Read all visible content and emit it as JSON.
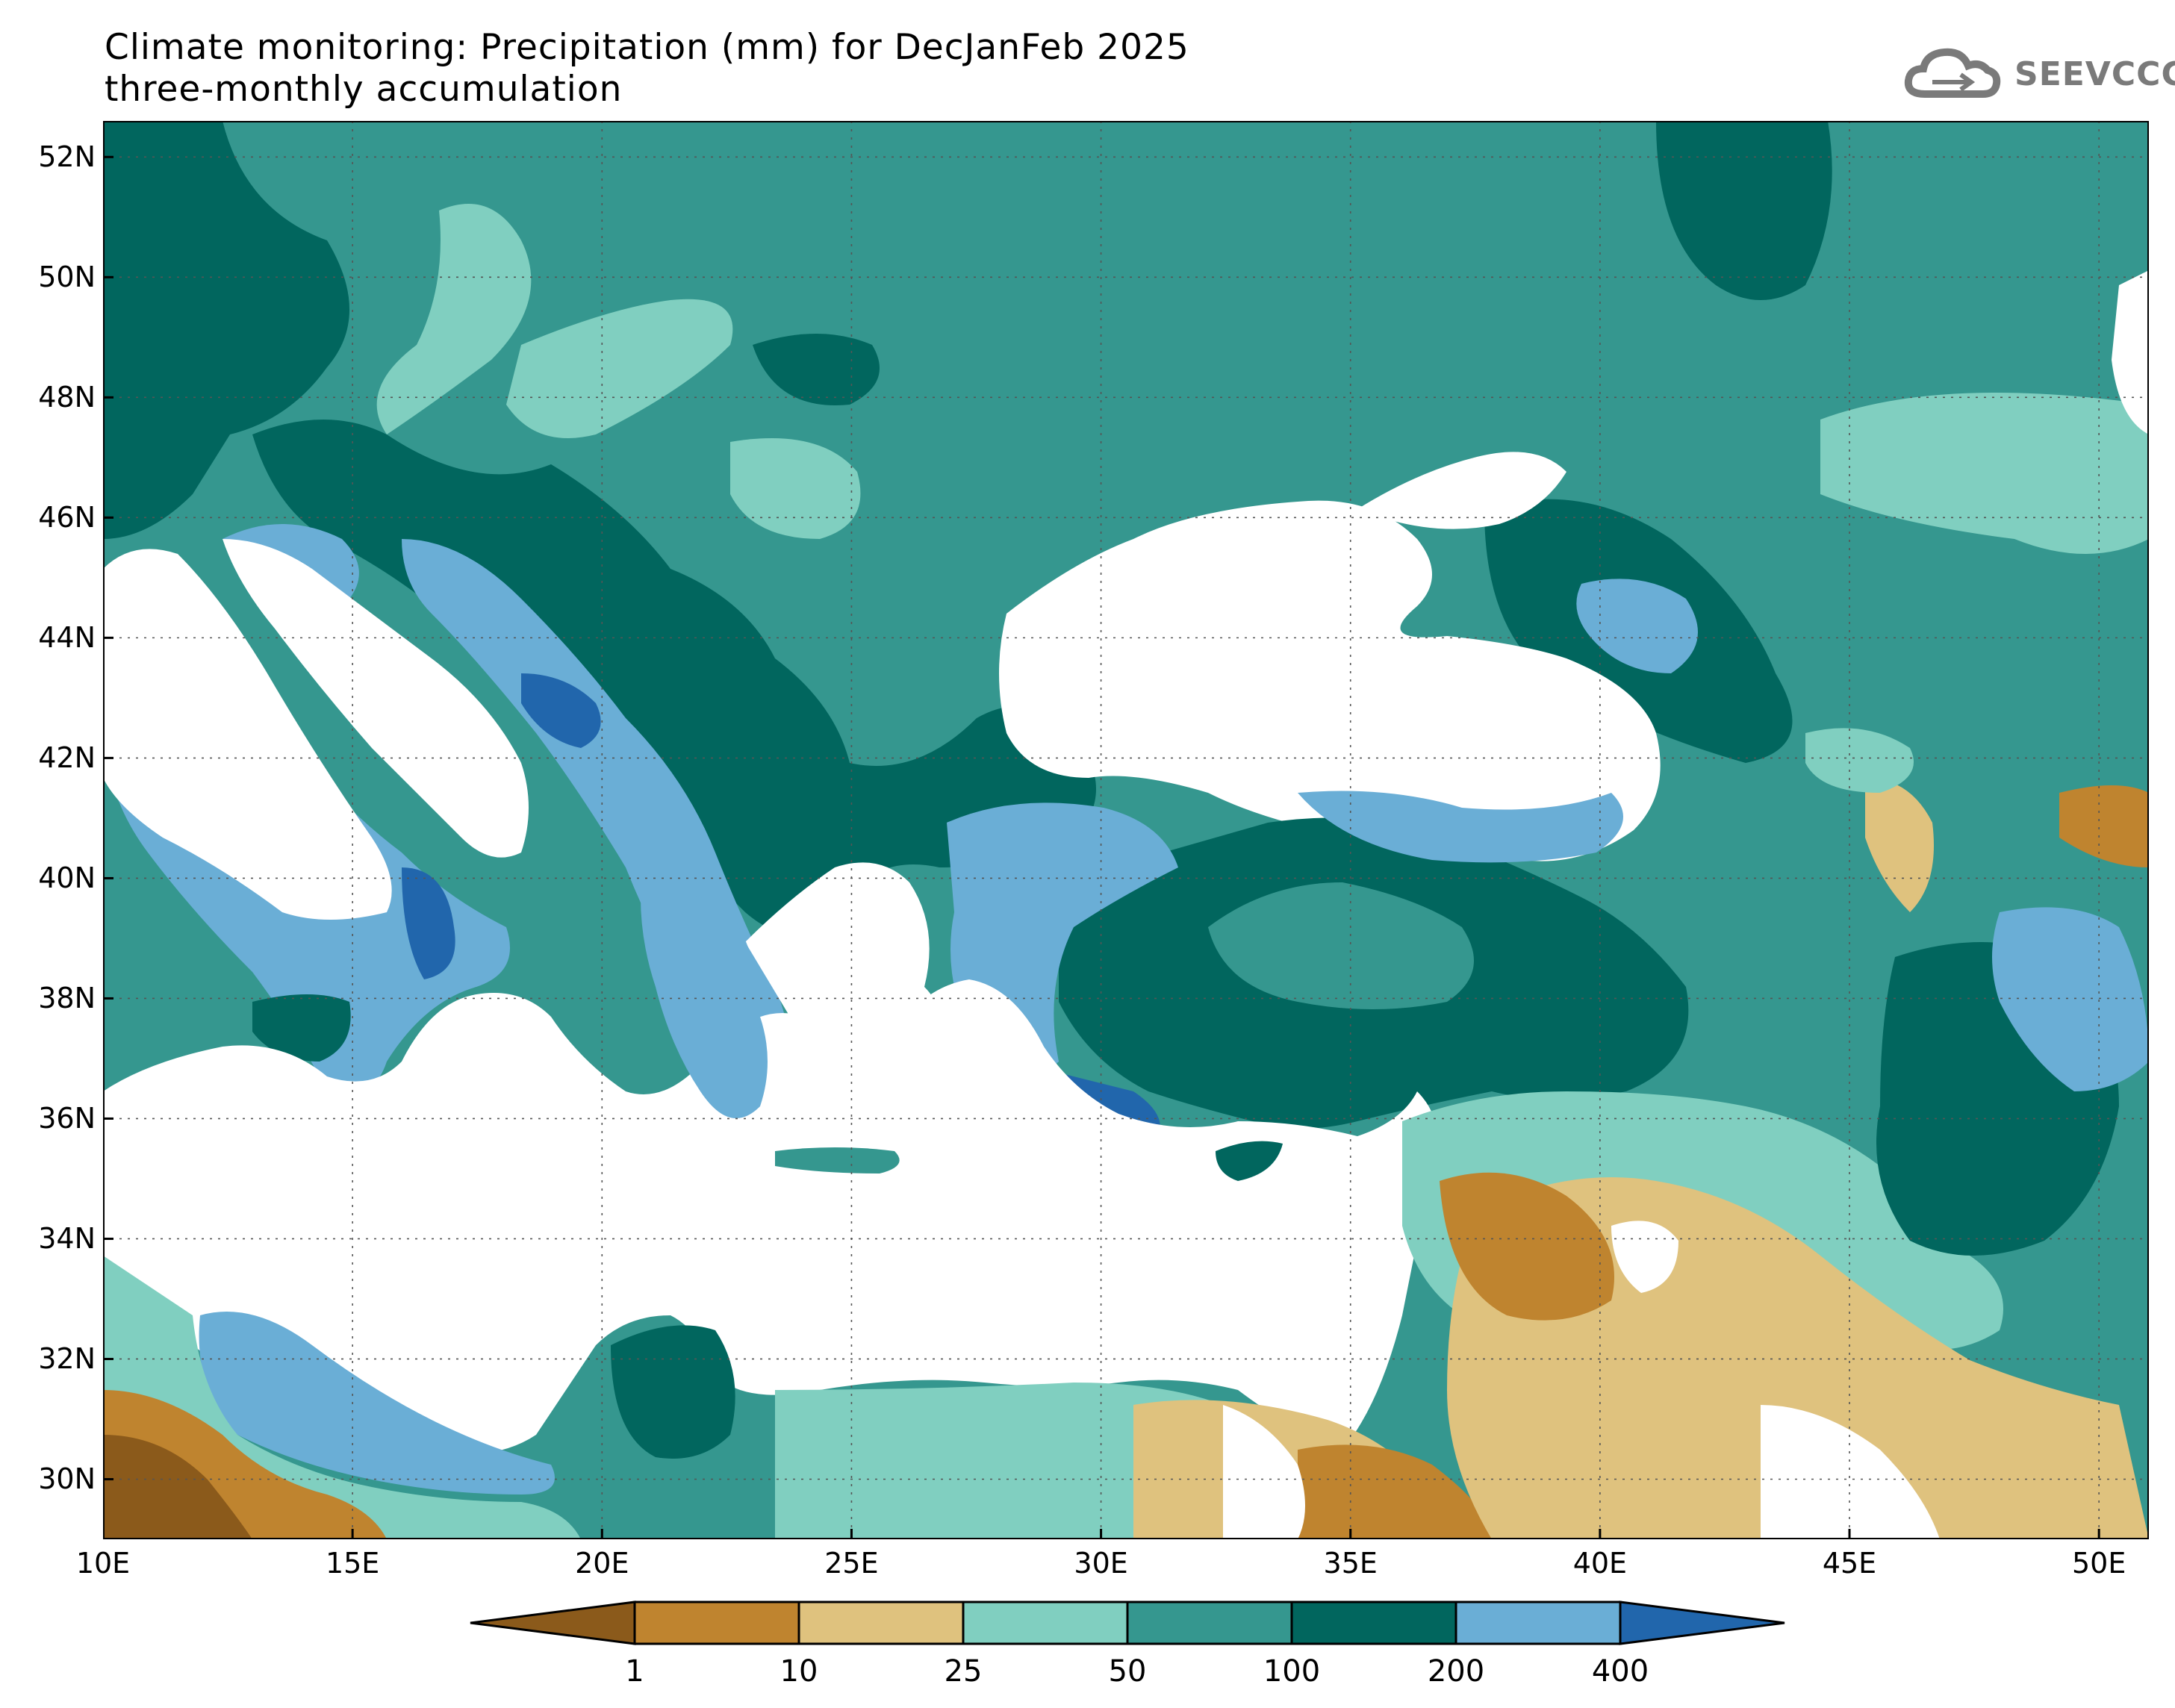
{
  "header": {
    "title_line1": "Climate monitoring: Precipitation (mm) for DecJanFeb 2025",
    "title_line2": "three-monthly accumulation",
    "logo_text": "SEEVCCC"
  },
  "map": {
    "projection": "lat-lon",
    "lon_range": [
      10,
      51
    ],
    "lat_range": [
      29,
      52.6
    ],
    "x_ticks": [
      "10E",
      "15E",
      "20E",
      "25E",
      "30E",
      "35E",
      "40E",
      "45E",
      "50E"
    ],
    "y_ticks": [
      "52N",
      "50N",
      "48N",
      "46N",
      "44N",
      "42N",
      "40N",
      "38N",
      "36N",
      "34N",
      "32N",
      "30N"
    ],
    "grid": "dotted",
    "land_color_sea": "#ffffff"
  },
  "colorbar": {
    "labels": [
      "1",
      "10",
      "25",
      "50",
      "100",
      "200",
      "400"
    ],
    "colors": [
      "#8b5a1b",
      "#bf842f",
      "#dfc27e",
      "#80cfc0",
      "#35978f",
      "#01665e",
      "#6aaed6",
      "#2166ac"
    ],
    "extend": "both"
  }
}
